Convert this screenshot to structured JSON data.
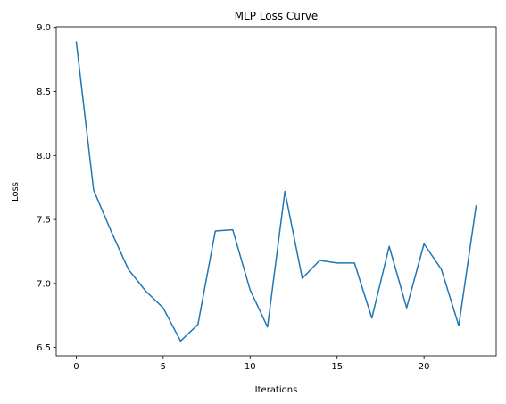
{
  "chart_data": {
    "type": "line",
    "title": "MLP Loss Curve",
    "xlabel": "Iterations",
    "ylabel": "Loss",
    "xlim": [
      -1.15,
      24.15
    ],
    "ylim": [
      6.435,
      9.005
    ],
    "xticks": [
      0,
      5,
      10,
      15,
      20
    ],
    "xtick_labels": [
      "0",
      "5",
      "10",
      "15",
      "20"
    ],
    "yticks": [
      6.5,
      7.0,
      7.5,
      8.0,
      8.5,
      9.0
    ],
    "ytick_labels": [
      "6.5",
      "7.0",
      "7.5",
      "8.0",
      "8.5",
      "9.0"
    ],
    "grid": false,
    "line_color": "#1f77b4",
    "series": [
      {
        "x": [
          0,
          1,
          2,
          3,
          4,
          5,
          6,
          7,
          8,
          9,
          10,
          11,
          12,
          13,
          14,
          15,
          16,
          17,
          18,
          19,
          20,
          21,
          22,
          23
        ],
        "values": [
          8.89,
          7.73,
          7.41,
          7.11,
          6.94,
          6.81,
          6.55,
          6.68,
          7.41,
          7.42,
          6.95,
          6.66,
          7.72,
          7.04,
          7.18,
          7.16,
          7.16,
          6.73,
          7.29,
          6.81,
          7.31,
          7.11,
          6.67,
          7.61
        ]
      }
    ]
  }
}
